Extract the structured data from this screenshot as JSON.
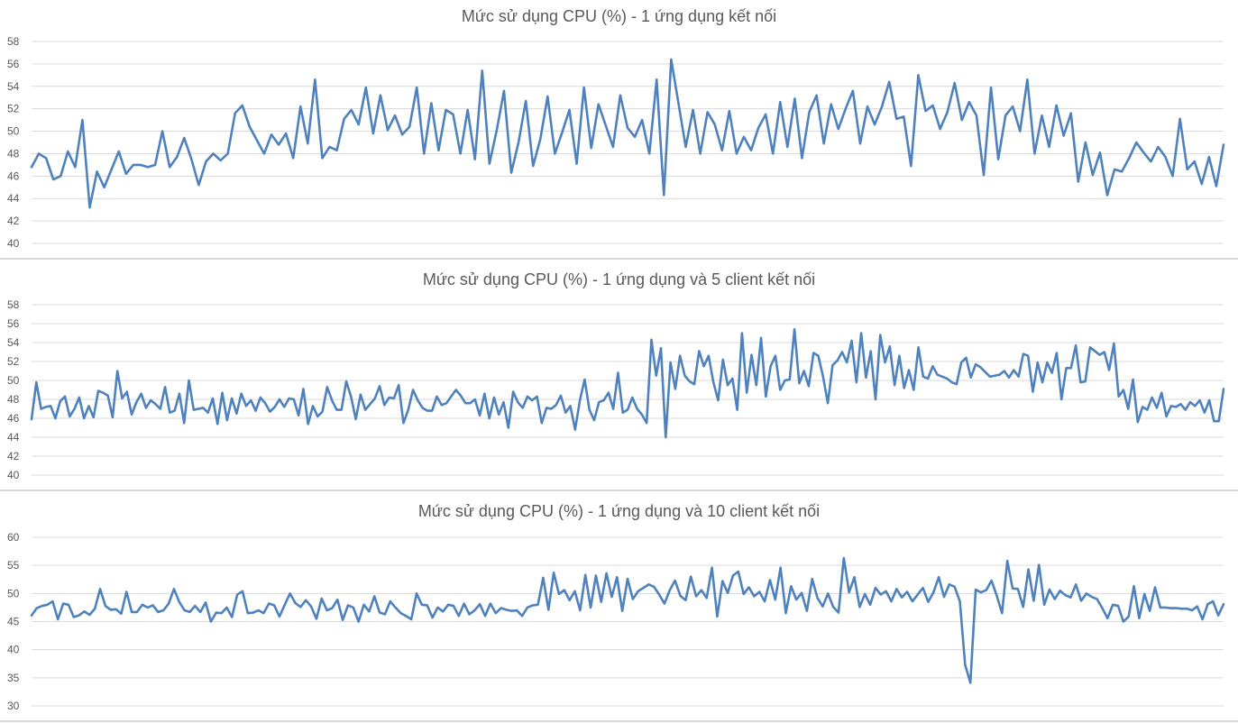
{
  "colors": {
    "series": "#4f81bd",
    "grid": "#d9d9d9",
    "text": "#595959"
  },
  "chart_data": [
    {
      "type": "line",
      "title": "Mức sử dụng CPU (%) - 1 ứng dụng kết nối",
      "xlabel": "",
      "ylabel": "",
      "ylim": [
        40,
        58
      ],
      "yticks": [
        "40",
        "42",
        "44",
        "46",
        "48",
        "50",
        "52",
        "54",
        "56",
        "58"
      ],
      "grid": true,
      "legend": "none",
      "series": [
        {
          "values": [
            46.8,
            48.0,
            47.6,
            45.7,
            46.0,
            48.2,
            46.8,
            51.0,
            43.2,
            46.4,
            45.0,
            46.6,
            48.2,
            46.2,
            47.0,
            47.0,
            46.8,
            47.0,
            50.0,
            46.8,
            47.7,
            49.4,
            47.5,
            45.2,
            47.3,
            48.0,
            47.4,
            48.0,
            51.6,
            52.3,
            50.4,
            49.2,
            48.0,
            49.7,
            48.8,
            49.8,
            47.6,
            52.2,
            48.9,
            54.6,
            47.6,
            48.6,
            48.3,
            51.1,
            51.9,
            50.6,
            53.9,
            49.8,
            53.2,
            50.1,
            51.4,
            49.7,
            50.4,
            53.9,
            48.0,
            52.5,
            48.3,
            51.9,
            51.5,
            48.0,
            51.9,
            47.5,
            55.4,
            47.1,
            50.1,
            53.6,
            46.3,
            49.0,
            52.7,
            46.9,
            49.3,
            53.1,
            48.0,
            49.9,
            51.9,
            47.1,
            53.9,
            48.5,
            52.4,
            50.5,
            48.6,
            53.2,
            50.3,
            49.5,
            51.0,
            48.0,
            54.6,
            44.3,
            56.4,
            52.5,
            48.6,
            51.9,
            48.0,
            51.7,
            50.6,
            48.3,
            51.8,
            48.0,
            49.5,
            48.3,
            50.3,
            51.5,
            48.0,
            52.6,
            48.6,
            52.9,
            47.6,
            51.7,
            53.2,
            48.9,
            52.4,
            50.2,
            52.0,
            53.6,
            48.9,
            52.2,
            50.6,
            52.2,
            54.4,
            51.1,
            51.3,
            46.9,
            55.0,
            51.8,
            52.3,
            50.2,
            51.7,
            54.3,
            51.0,
            52.6,
            51.4,
            46.1,
            53.9,
            47.5,
            51.4,
            52.2,
            50.0,
            54.6,
            48.0,
            51.4,
            48.6,
            52.3,
            49.6,
            51.6,
            45.5,
            49.0,
            46.1,
            48.1,
            44.3,
            46.6,
            46.4,
            47.6,
            49.0,
            48.1,
            47.3,
            48.6,
            47.7,
            46.0,
            51.1,
            46.6,
            47.3,
            45.3,
            47.7,
            45.1,
            48.8
          ]
        }
      ]
    },
    {
      "type": "line",
      "title": "Mức sử dụng CPU (%) - 1 ứng dụng và 5 client kết nối",
      "xlabel": "",
      "ylabel": "",
      "ylim": [
        40,
        58
      ],
      "yticks": [
        "40",
        "42",
        "44",
        "46",
        "48",
        "50",
        "52",
        "54",
        "56",
        "58"
      ],
      "grid": true,
      "legend": "none",
      "series": [
        {
          "values": [
            45.9,
            49.8,
            47.0,
            47.2,
            47.3,
            46.0,
            47.8,
            48.3,
            46.2,
            47.0,
            48.2,
            46.0,
            47.3,
            46.1,
            48.9,
            48.7,
            48.4,
            46.1,
            51.0,
            48.1,
            48.8,
            46.4,
            47.7,
            48.6,
            47.1,
            47.9,
            47.5,
            47.0,
            49.3,
            46.6,
            46.8,
            48.6,
            45.5,
            50.0,
            46.9,
            47.0,
            47.1,
            46.6,
            48.1,
            45.4,
            48.7,
            45.8,
            48.1,
            46.5,
            48.6,
            47.3,
            47.9,
            46.8,
            48.2,
            47.6,
            46.7,
            47.2,
            48.0,
            47.2,
            48.1,
            48.0,
            46.3,
            49.1,
            45.4,
            47.3,
            46.2,
            46.7,
            49.3,
            47.9,
            46.9,
            46.9,
            49.9,
            48.3,
            45.9,
            48.5,
            46.9,
            47.5,
            48.1,
            49.4,
            47.4,
            48.2,
            48.1,
            49.5,
            45.5,
            46.9,
            49.0,
            47.9,
            47.1,
            46.8,
            46.8,
            48.3,
            47.4,
            47.6,
            48.3,
            49.0,
            48.4,
            47.6,
            47.6,
            48.0,
            46.3,
            48.6,
            46.0,
            48.2,
            46.4,
            47.7,
            45.0,
            48.8,
            47.7,
            47.1,
            48.3,
            47.9,
            48.3,
            45.5,
            47.1,
            47.0,
            47.4,
            48.4,
            46.6,
            47.3,
            44.8,
            47.9,
            50.1,
            46.9,
            45.8,
            47.7,
            47.9,
            48.7,
            47.0,
            50.8,
            46.6,
            46.9,
            48.2,
            47.0,
            46.4,
            45.5,
            54.3,
            50.5,
            53.4,
            44.0,
            51.9,
            49.1,
            52.6,
            50.5,
            49.9,
            49.6,
            53.1,
            51.5,
            52.6,
            49.8,
            47.9,
            52.2,
            49.5,
            50.2,
            46.9,
            55.0,
            48.7,
            52.7,
            49.5,
            54.5,
            48.3,
            51.5,
            52.6,
            49.0,
            50.0,
            50.1,
            55.4,
            49.7,
            51.0,
            49.4,
            52.9,
            52.6,
            50.4,
            47.6,
            51.6,
            52.1,
            53.0,
            51.9,
            54.2,
            49.8,
            55.0,
            50.3,
            53.1,
            48.0,
            54.8,
            51.9,
            53.6,
            49.5,
            52.6,
            49.2,
            51.1,
            49.0,
            53.5,
            50.4,
            50.2,
            51.5,
            50.6,
            50.4,
            50.2,
            49.8,
            49.6,
            51.9,
            52.4,
            50.3,
            51.7,
            51.4,
            50.9,
            50.4,
            50.5,
            50.6,
            51.0,
            50.3,
            51.1,
            50.4,
            52.8,
            52.6,
            48.8,
            51.9,
            49.8,
            51.9,
            50.8,
            52.9,
            48.0,
            51.3,
            51.3,
            53.7,
            49.8,
            49.9,
            53.5,
            53.1,
            52.7,
            53.0,
            51.1,
            53.9,
            48.3,
            49.0,
            47.0,
            50.1,
            45.6,
            47.2,
            46.9,
            48.2,
            47.1,
            48.7,
            46.2,
            47.3,
            47.2,
            47.5,
            46.9,
            47.7,
            47.3,
            47.9,
            46.6,
            47.9,
            45.7,
            45.7,
            49.1
          ]
        }
      ]
    },
    {
      "type": "line",
      "title": "Mức sử dụng CPU (%) - 1 ứng dụng và 10 client kết nối",
      "xlabel": "",
      "ylabel": "",
      "ylim": [
        30,
        60
      ],
      "yticks": [
        "30",
        "35",
        "40",
        "45",
        "50",
        "55",
        "60"
      ],
      "grid": true,
      "legend": "none",
      "series": [
        {
          "values": [
            46.1,
            47.4,
            47.8,
            48.0,
            48.6,
            45.4,
            48.2,
            48.0,
            45.8,
            46.1,
            46.8,
            46.2,
            47.3,
            50.8,
            47.8,
            47.1,
            47.2,
            46.4,
            50.3,
            46.7,
            46.7,
            48.0,
            47.5,
            47.9,
            46.7,
            47.0,
            48.2,
            50.8,
            48.5,
            47.0,
            46.7,
            47.8,
            46.7,
            48.4,
            45.0,
            46.6,
            46.5,
            47.5,
            45.8,
            49.8,
            50.4,
            46.5,
            46.6,
            47.0,
            46.5,
            48.2,
            47.9,
            45.9,
            48.0,
            50.0,
            48.3,
            47.6,
            48.8,
            47.7,
            45.5,
            49.1,
            47.0,
            47.4,
            48.9,
            45.3,
            47.9,
            47.5,
            45.0,
            48.0,
            46.8,
            49.5,
            46.6,
            46.3,
            48.6,
            47.5,
            46.5,
            46.0,
            45.4,
            50.0,
            48.0,
            47.9,
            45.7,
            47.5,
            46.8,
            48.0,
            47.8,
            46.0,
            48.2,
            46.3,
            47.0,
            48.1,
            46.0,
            48.2,
            46.5,
            47.4,
            47.1,
            46.9,
            47.0,
            46.0,
            47.5,
            47.9,
            48.0,
            52.8,
            47.1,
            53.7,
            49.9,
            50.6,
            48.8,
            50.4,
            47.0,
            53.3,
            47.5,
            53.2,
            48.5,
            53.6,
            49.4,
            52.9,
            46.9,
            52.6,
            49.0,
            50.4,
            51.0,
            51.6,
            51.2,
            49.8,
            48.2,
            50.6,
            52.3,
            49.6,
            48.8,
            53.0,
            49.5,
            50.6,
            49.2,
            54.6,
            45.9,
            52.2,
            50.1,
            53.2,
            53.9,
            49.9,
            51.1,
            49.5,
            50.3,
            48.6,
            52.4,
            48.9,
            54.6,
            46.5,
            51.3,
            48.9,
            50.1,
            46.9,
            52.6,
            49.2,
            47.7,
            50.0,
            47.6,
            46.6,
            56.3,
            50.2,
            52.9,
            47.6,
            49.9,
            48.0,
            51.0,
            49.8,
            50.4,
            48.6,
            50.8,
            49.3,
            50.3,
            48.6,
            49.8,
            51.0,
            48.5,
            50.2,
            52.9,
            49.4,
            51.6,
            51.2,
            48.6,
            37.3,
            34.1,
            50.7,
            50.2,
            50.6,
            52.3,
            49.6,
            46.5,
            55.8,
            50.9,
            50.8,
            47.6,
            54.3,
            48.7,
            55.1,
            48.0,
            50.7,
            49.0,
            50.5,
            49.7,
            49.3,
            51.6,
            48.7,
            50.0,
            49.4,
            49.0,
            47.4,
            45.6,
            48.0,
            47.8,
            45.0,
            45.9,
            51.3,
            45.6,
            49.9,
            46.9,
            51.1,
            47.5,
            47.5,
            47.4,
            47.4,
            47.3,
            47.3,
            47.0,
            47.7,
            45.4,
            48.1,
            48.6,
            46.1,
            48.1
          ]
        }
      ]
    }
  ]
}
